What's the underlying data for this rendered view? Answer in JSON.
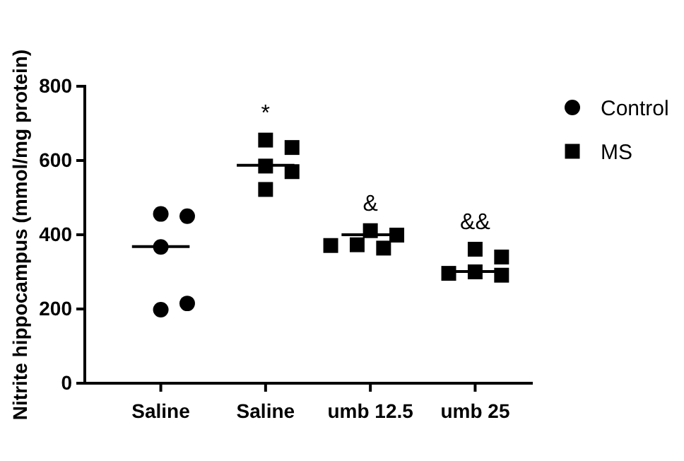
{
  "chart_data": {
    "type": "scatter",
    "ylabel": "Nitrite hippocampus (mmol/mg protein)",
    "categories": [
      "Saline",
      "Saline",
      "umb 12.5",
      "umb 25"
    ],
    "ylim": [
      0,
      800
    ],
    "yticks": [
      0,
      200,
      400,
      600,
      800
    ],
    "grid": false,
    "legend": "top right",
    "series": [
      {
        "name": "Control",
        "color": "#000000",
        "marker": "circle",
        "values": [
          456,
          null,
          null,
          null
        ]
      },
      {
        "color": "#000000",
        "marker": "circle",
        "values": [
          450,
          null,
          null,
          null
        ]
      },
      {
        "color": "#000000",
        "marker": "circle",
        "values": [
          367,
          null,
          null,
          null
        ]
      },
      {
        "color": "#000000",
        "marker": "circle",
        "values": [
          198,
          null,
          null,
          null
        ]
      },
      {
        "color": "#000000",
        "marker": "circle",
        "values": [
          215,
          null,
          null,
          null
        ]
      },
      {
        "name": "MS",
        "color": "#000000",
        "marker": "square",
        "values": [
          null,
          655,
          411,
          361
        ]
      },
      {
        "color": "#000000",
        "marker": "square",
        "values": [
          null,
          635,
          399,
          340
        ]
      },
      {
        "color": "#000000",
        "marker": "square",
        "values": [
          null,
          585,
          373,
          300
        ]
      },
      {
        "color": "#000000",
        "marker": "square",
        "values": [
          null,
          570,
          371,
          296
        ]
      },
      {
        "color": "#000000",
        "marker": "square",
        "values": [
          null,
          522,
          364,
          291
        ]
      },
      {
        "type": "box",
        "color": "#000000",
        "boxes": [
          {
            "low": 368,
            "q1": 368,
            "median": 368,
            "q3": 368,
            "high": 368
          },
          {
            "low": 587,
            "q1": 587,
            "median": 587,
            "q3": 587,
            "high": 587
          },
          {
            "low": 400,
            "q1": 400,
            "median": 400,
            "q3": 400,
            "high": 400
          },
          {
            "low": 301,
            "q1": 301,
            "median": 301,
            "q3": 301,
            "high": 301
          }
        ]
      }
    ],
    "annotations": [
      "*",
      "&",
      "&&"
    ]
  }
}
